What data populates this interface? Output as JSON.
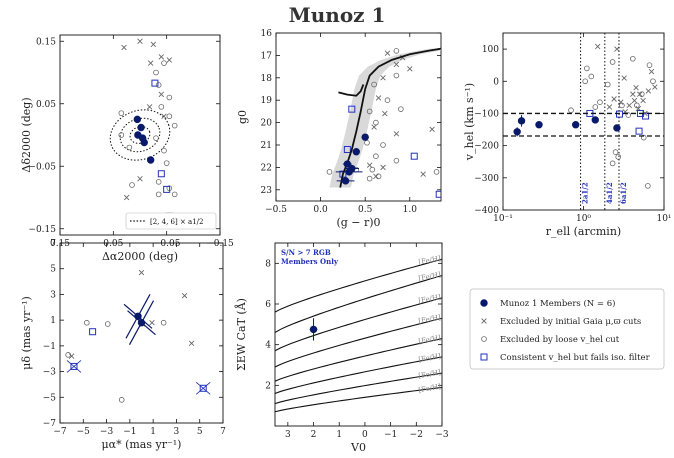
{
  "title": "Munoz 1",
  "colors": {
    "member": "#0a1a6b",
    "blue_square": "#2233bb",
    "gray": "#666666",
    "band": "#d9d9d9"
  },
  "legend": {
    "entries": [
      {
        "marker": "filled-circle",
        "label": "Munoz 1 Members (N = 6)"
      },
      {
        "marker": "cross",
        "label": "Excluded by initial Gaia μ,ϖ cuts"
      },
      {
        "marker": "open-circle",
        "label": "Excluded by loose v_hel cut"
      },
      {
        "marker": "open-square",
        "label": "Consistent v_hel but fails iso. filter"
      }
    ]
  },
  "chart_data": [
    {
      "type": "scatter",
      "id": "position",
      "xlabel": "Δα2000 (deg)",
      "ylabel": "Δδ2000 (deg)",
      "xlim": [
        0.15,
        -0.15
      ],
      "ylim": [
        -0.16,
        0.16
      ],
      "xticks": [
        "0.15",
        "0.05",
        "−0.05",
        "−0.15"
      ],
      "yticks": [
        "−0.15",
        "−0.05",
        "0.05",
        "0.15"
      ],
      "inset_legend": "[2, 4, 6] × a1/2",
      "ellipses": [
        {
          "rx": 0.019,
          "ry": 0.013
        },
        {
          "rx": 0.038,
          "ry": 0.026
        },
        {
          "rx": 0.057,
          "ry": 0.039
        }
      ],
      "members": [
        [
          0.005,
          0.025
        ],
        [
          -0.002,
          0.012
        ],
        [
          0.004,
          0.0
        ],
        [
          -0.005,
          -0.005
        ],
        [
          -0.008,
          -0.012
        ],
        [
          -0.02,
          -0.04
        ]
      ],
      "crosses": [
        [
          0.0,
          0.15
        ],
        [
          -0.025,
          0.145
        ],
        [
          0.03,
          0.14
        ],
        [
          -0.04,
          0.125
        ],
        [
          -0.02,
          0.115
        ],
        [
          -0.055,
          0.12
        ],
        [
          -0.04,
          0.065
        ],
        [
          0.025,
          -0.1
        ],
        [
          0.0,
          -0.07
        ],
        [
          -0.018,
          0.045
        ],
        [
          -0.045,
          0.03
        ]
      ],
      "circles": [
        [
          -0.045,
          0.115
        ],
        [
          -0.03,
          0.1
        ],
        [
          -0.035,
          0.08
        ],
        [
          -0.055,
          0.06
        ],
        [
          -0.04,
          0.045
        ],
        [
          -0.065,
          0.015
        ],
        [
          -0.055,
          0.03
        ],
        [
          0.035,
          0.0
        ],
        [
          -0.03,
          -0.005
        ],
        [
          0.02,
          -0.02
        ],
        [
          -0.045,
          -0.025
        ],
        [
          -0.05,
          -0.045
        ],
        [
          -0.035,
          -0.075
        ],
        [
          -0.055,
          -0.085
        ],
        [
          -0.035,
          -0.095
        ],
        [
          -0.065,
          -0.095
        ],
        [
          0.015,
          -0.08
        ],
        [
          0.035,
          0.035
        ]
      ],
      "squares": [
        [
          -0.028,
          0.083
        ],
        [
          -0.04,
          -0.062
        ],
        [
          -0.05,
          -0.087
        ],
        [
          -0.055,
          -0.13
        ]
      ]
    },
    {
      "type": "scatter",
      "id": "cmd",
      "xlabel": "(g − r)0",
      "ylabel": "g0",
      "xlim": [
        -0.5,
        1.35
      ],
      "ylim": [
        23.5,
        16.0
      ],
      "xticks": [
        "−0.5",
        "0.0",
        "0.5",
        "1.0"
      ],
      "yticks": [
        "16",
        "17",
        "18",
        "19",
        "20",
        "21",
        "22",
        "23"
      ],
      "isochrone": [
        [
          0.22,
          22.9
        ],
        [
          0.25,
          22.3
        ],
        [
          0.3,
          21.8
        ],
        [
          0.35,
          21.2
        ],
        [
          0.4,
          20.4
        ],
        [
          0.45,
          19.5
        ],
        [
          0.5,
          18.5
        ],
        [
          0.55,
          17.9
        ],
        [
          0.65,
          17.5
        ],
        [
          0.8,
          17.2
        ],
        [
          1.0,
          16.95
        ],
        [
          1.2,
          16.8
        ],
        [
          1.35,
          16.7
        ]
      ],
      "hb": [
        [
          0.2,
          18.65
        ],
        [
          0.3,
          18.75
        ],
        [
          0.4,
          18.8
        ],
        [
          0.45,
          18.6
        ],
        [
          0.48,
          18.3
        ]
      ],
      "members": [
        [
          0.5,
          20.65
        ],
        [
          0.4,
          21.3
        ],
        [
          0.3,
          21.85
        ],
        [
          0.35,
          22.05
        ],
        [
          0.32,
          22.2
        ],
        [
          0.28,
          22.6
        ]
      ],
      "member_xerr": [
        0.04,
        0.04,
        0.05,
        0.08,
        0.15,
        0.1
      ],
      "crosses": [
        [
          0.75,
          16.9
        ],
        [
          0.85,
          17.4
        ],
        [
          1.0,
          17.6
        ],
        [
          0.7,
          18.0
        ],
        [
          0.65,
          18.9
        ],
        [
          0.72,
          19.6
        ],
        [
          0.6,
          20.2
        ],
        [
          0.85,
          20.5
        ],
        [
          1.25,
          20.3
        ],
        [
          0.55,
          21.9
        ],
        [
          0.7,
          22.0
        ],
        [
          1.15,
          22.3
        ],
        [
          0.92,
          17.1
        ],
        [
          0.62,
          22.4
        ]
      ],
      "circles": [
        [
          0.85,
          16.8
        ],
        [
          0.85,
          17.9
        ],
        [
          0.6,
          18.3
        ],
        [
          0.75,
          19.0
        ],
        [
          0.9,
          19.4
        ],
        [
          0.55,
          19.5
        ],
        [
          0.62,
          20.0
        ],
        [
          0.7,
          21.0
        ],
        [
          0.52,
          20.9
        ],
        [
          0.85,
          21.7
        ],
        [
          0.58,
          22.1
        ],
        [
          0.55,
          22.5
        ],
        [
          0.65,
          22.4
        ],
        [
          1.3,
          22.2
        ],
        [
          0.1,
          22.2
        ],
        [
          0.4,
          22.1
        ],
        [
          0.62,
          21.5
        ]
      ],
      "squares": [
        [
          0.35,
          19.4
        ],
        [
          0.3,
          21.2
        ],
        [
          0.25,
          22.3
        ],
        [
          1.05,
          21.5
        ],
        [
          1.33,
          23.2
        ]
      ]
    },
    {
      "type": "scatter",
      "id": "velocity",
      "xlabel": "r_ell (arcmin)",
      "ylabel": "v_hel (km s⁻¹)",
      "xscale": "log",
      "xlim": [
        0.1,
        10
      ],
      "ylim": [
        -400,
        150
      ],
      "xticks": [
        "10⁻¹",
        "10⁰",
        "10¹"
      ],
      "yticks": [
        "−400",
        "−300",
        "−200",
        "−100",
        "0",
        "100"
      ],
      "hlines": [
        -100,
        -170
      ],
      "vlines": [
        {
          "x": 0.92,
          "label": "2a1/2"
        },
        {
          "x": 1.84,
          "label": "4a1/2"
        },
        {
          "x": 2.76,
          "label": "6a1/2"
        }
      ],
      "members": [
        [
          0.17,
          -123
        ],
        [
          0.28,
          -135
        ],
        [
          0.8,
          -135
        ],
        [
          1.4,
          -120
        ],
        [
          0.15,
          -157
        ],
        [
          2.6,
          -145
        ]
      ],
      "member_yerr": [
        18,
        10,
        10,
        8,
        14,
        10
      ],
      "crosses": [
        [
          1.5,
          108
        ],
        [
          2.6,
          100
        ],
        [
          3.2,
          10
        ],
        [
          4.5,
          -20
        ],
        [
          5.0,
          -40
        ],
        [
          5.5,
          -60
        ],
        [
          3.7,
          -75
        ],
        [
          4.8,
          -85
        ],
        [
          2.4,
          -55
        ],
        [
          2.9,
          -65
        ],
        [
          4.1,
          -40
        ],
        [
          3.3,
          -95
        ],
        [
          5.8,
          -100
        ],
        [
          7.0,
          30
        ],
        [
          7.7,
          -18
        ],
        [
          4.3,
          -60
        ],
        [
          2.1,
          -80
        ],
        [
          6.4,
          -30
        ]
      ],
      "circles": [
        [
          1.1,
          40
        ],
        [
          1.25,
          15
        ],
        [
          1.05,
          0
        ],
        [
          1.6,
          -65
        ],
        [
          1.4,
          -80
        ],
        [
          2.3,
          60
        ],
        [
          4.1,
          70
        ],
        [
          6.6,
          50
        ],
        [
          7.3,
          0
        ],
        [
          5.3,
          -40
        ],
        [
          4.6,
          -75
        ],
        [
          3.6,
          -105
        ],
        [
          2.5,
          -220
        ],
        [
          2.7,
          -235
        ],
        [
          2.3,
          -255
        ],
        [
          0.7,
          -90
        ],
        [
          5.6,
          -175
        ],
        [
          6.3,
          -325
        ],
        [
          3.0,
          -75
        ],
        [
          2.0,
          -10
        ]
      ],
      "squares": [
        [
          1.2,
          -100
        ],
        [
          2.8,
          -102
        ],
        [
          5.1,
          -100
        ],
        [
          5.9,
          -108
        ],
        [
          4.9,
          -155
        ]
      ]
    },
    {
      "type": "scatter",
      "id": "proper-motion",
      "xlabel": "μα* (mas yr⁻¹)",
      "ylabel": "μδ (mas yr⁻¹)",
      "xlim": [
        -7,
        7
      ],
      "ylim": [
        -7,
        7
      ],
      "xticks": [
        "−7",
        "−5",
        "−3",
        "−1",
        "1",
        "3",
        "5",
        "7"
      ],
      "yticks": [
        "−7",
        "−5",
        "−3",
        "−1",
        "1",
        "3",
        "5",
        "7"
      ],
      "members": [
        [
          -0.3,
          1.3
        ],
        [
          0.0,
          0.8
        ]
      ],
      "crosses": [
        [
          0.0,
          4.7
        ],
        [
          0.9,
          0.8
        ],
        [
          3.7,
          2.9
        ],
        [
          -6.0,
          -1.8
        ],
        [
          4.3,
          -0.8
        ],
        [
          0.1,
          0.7
        ]
      ],
      "circles": [
        [
          -4.7,
          0.8
        ],
        [
          -2.9,
          0.7
        ],
        [
          -1.7,
          -5.2
        ],
        [
          1.9,
          0.8
        ],
        [
          -6.3,
          -1.7
        ]
      ],
      "squares": [
        [
          -4.2,
          0.1
        ],
        [
          -5.8,
          -2.6
        ],
        [
          5.3,
          -4.3
        ]
      ]
    },
    {
      "type": "line",
      "id": "cat",
      "xlabel": "V0",
      "ylabel": "ΣEW CaT (Å)",
      "xlim": [
        3.5,
        -3
      ],
      "ylim": [
        0,
        9
      ],
      "xticks": [
        "3",
        "2",
        "1",
        "0",
        "−1",
        "−2",
        "−3"
      ],
      "yticks": [
        "2",
        "4",
        "6",
        "8"
      ],
      "annotation": [
        "S/N > 7 RGB",
        "Members Only"
      ],
      "feh_lines": [
        {
          "label": "[Fe/H] = −0.5",
          "y0": 5.6,
          "y1": 8.2
        },
        {
          "label": "[Fe/H] = −1.0",
          "y0": 4.6,
          "y1": 7.4
        },
        {
          "label": "[Fe/H] = −1.5",
          "y0": 3.7,
          "y1": 6.3
        },
        {
          "label": "[Fe/H] = −2.0",
          "y0": 2.9,
          "y1": 5.3
        },
        {
          "label": "[Fe/H] = −2.5",
          "y0": 2.2,
          "y1": 4.3
        },
        {
          "label": "[Fe/H] = −3.0",
          "y0": 1.6,
          "y1": 3.4
        },
        {
          "label": "[Fe/H] = −3.5",
          "y0": 1.1,
          "y1": 2.6
        },
        {
          "label": "[Fe/H] = −4.0",
          "y0": 0.7,
          "y1": 1.9
        }
      ],
      "members": [
        [
          2.0,
          4.75
        ]
      ],
      "member_yerr": [
        0.55
      ],
      "member_xerr": [
        0.15
      ]
    }
  ]
}
